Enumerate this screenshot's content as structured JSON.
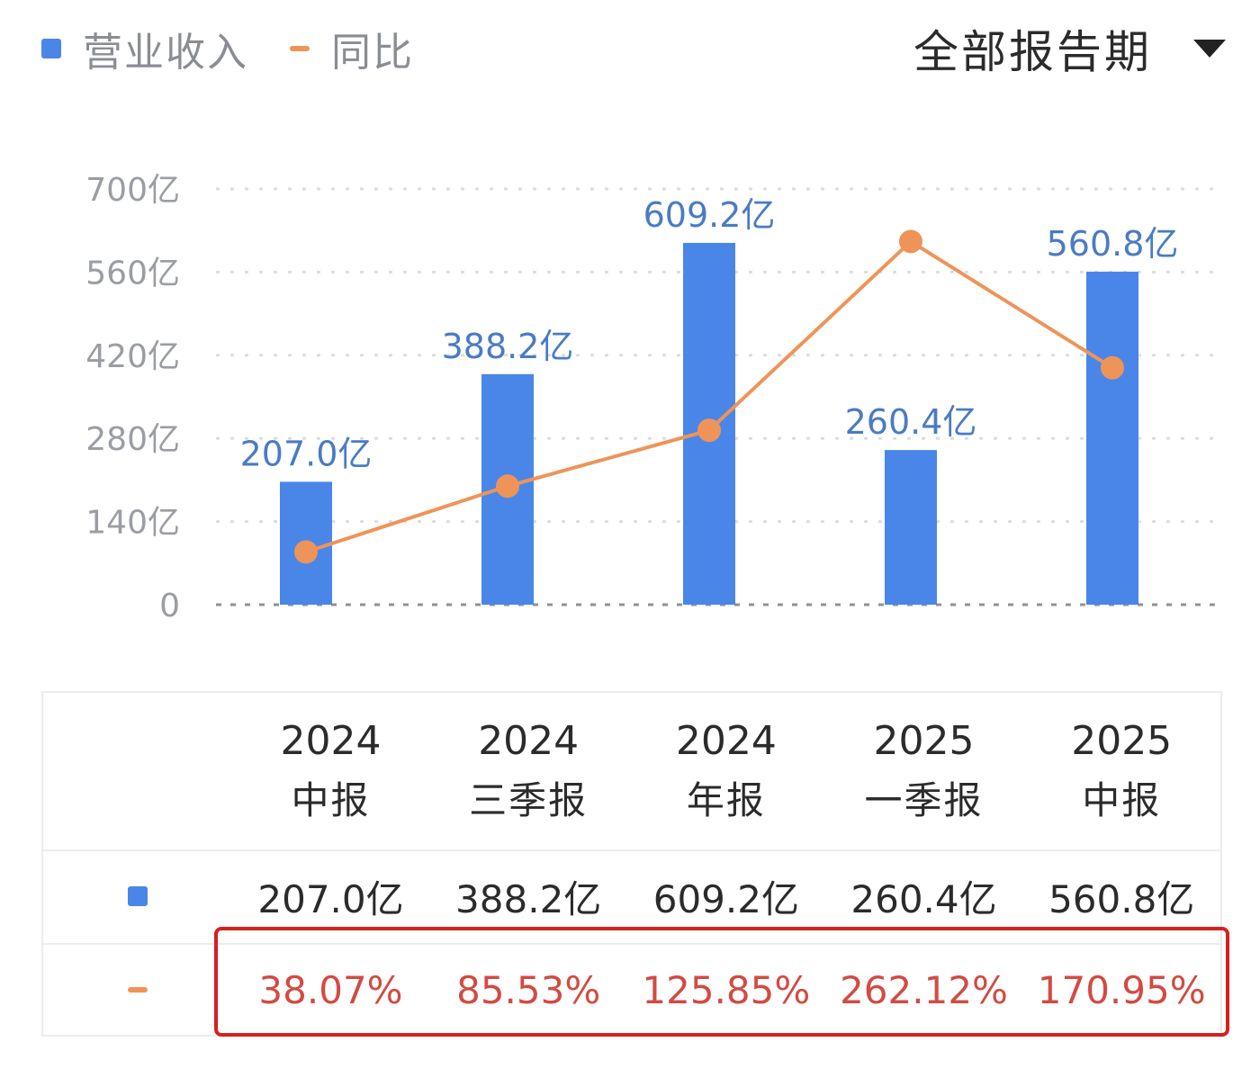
{
  "legend": {
    "revenue_label": "营业收入",
    "yoy_label": "同比"
  },
  "period_selector": {
    "label": "全部报告期"
  },
  "colors": {
    "bar": "#4a86e8",
    "line": "#ee9458",
    "data_label": "#4a7bc4",
    "highlight_border": "#d6201e",
    "yoy_text": "#d24b43"
  },
  "chart_data": {
    "type": "bar",
    "categories": [
      "2024 中报",
      "2024 三季报",
      "2024 年报",
      "2025 一季报",
      "2025 中报"
    ],
    "series": [
      {
        "name": "营业收入",
        "type": "bar",
        "unit": "亿",
        "values": [
          207.0,
          388.2,
          609.2,
          260.4,
          560.8
        ],
        "labels": [
          "207.0亿",
          "388.2亿",
          "609.2亿",
          "260.4亿",
          "560.8亿"
        ]
      },
      {
        "name": "同比",
        "type": "line",
        "unit": "%",
        "values": [
          38.07,
          85.53,
          125.85,
          262.12,
          170.95
        ],
        "y2lim": [
          0,
          300
        ]
      }
    ],
    "ylim": [
      0,
      700
    ],
    "yticks": [
      0,
      140,
      280,
      420,
      560,
      700
    ],
    "ytick_labels": [
      "0",
      "140亿",
      "280亿",
      "420亿",
      "560亿",
      "700亿"
    ],
    "grid": true,
    "legend": "top-left"
  },
  "table": {
    "periods": [
      {
        "year": "2024",
        "name": "中报"
      },
      {
        "year": "2024",
        "name": "三季报"
      },
      {
        "year": "2024",
        "name": "年报"
      },
      {
        "year": "2025",
        "name": "一季报"
      },
      {
        "year": "2025",
        "name": "中报"
      }
    ],
    "revenue": [
      "207.0亿",
      "388.2亿",
      "609.2亿",
      "260.4亿",
      "560.8亿"
    ],
    "yoy": [
      "38.07%",
      "85.53%",
      "125.85%",
      "262.12%",
      "170.95%"
    ]
  }
}
